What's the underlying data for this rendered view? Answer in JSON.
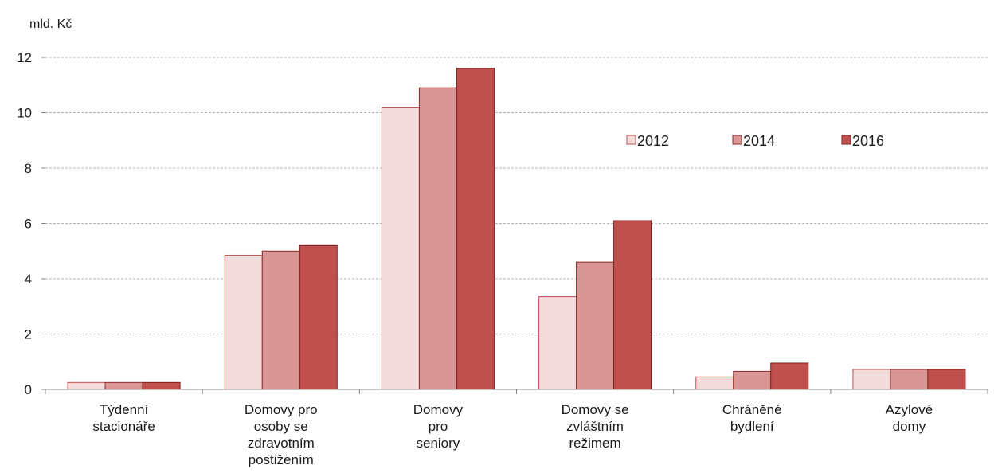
{
  "chart_data": {
    "type": "bar",
    "unit_label": "mld. Kč",
    "categories": [
      [
        "Týdenní",
        "stacionáře"
      ],
      [
        "Domovy pro",
        "osoby se",
        "zdravotním",
        "postižením"
      ],
      [
        "Domovy",
        "pro",
        "seniory"
      ],
      [
        "Domovy se",
        "zvláštním",
        "režimem"
      ],
      [
        "Chráněné",
        "bydlení"
      ],
      [
        "Azylové",
        "domy"
      ]
    ],
    "series": [
      {
        "name": "2012",
        "color": "#f2dcdb",
        "stroke": "#c0504d",
        "values": [
          0.25,
          4.85,
          10.2,
          3.35,
          0.45,
          0.72
        ]
      },
      {
        "name": "2014",
        "color": "#d99694",
        "stroke": "#8b2a27",
        "values": [
          0.25,
          5.0,
          10.9,
          4.6,
          0.65,
          0.72
        ]
      },
      {
        "name": "2016",
        "color": "#c0504d",
        "stroke": "#7a1f1c",
        "values": [
          0.25,
          5.2,
          11.6,
          6.1,
          0.95,
          0.72
        ]
      }
    ],
    "ylim": [
      0,
      12
    ],
    "yticks": [
      "0",
      "2",
      "4",
      "6",
      "8",
      "10",
      "12"
    ],
    "grid": true,
    "legend_position": "top-right"
  }
}
